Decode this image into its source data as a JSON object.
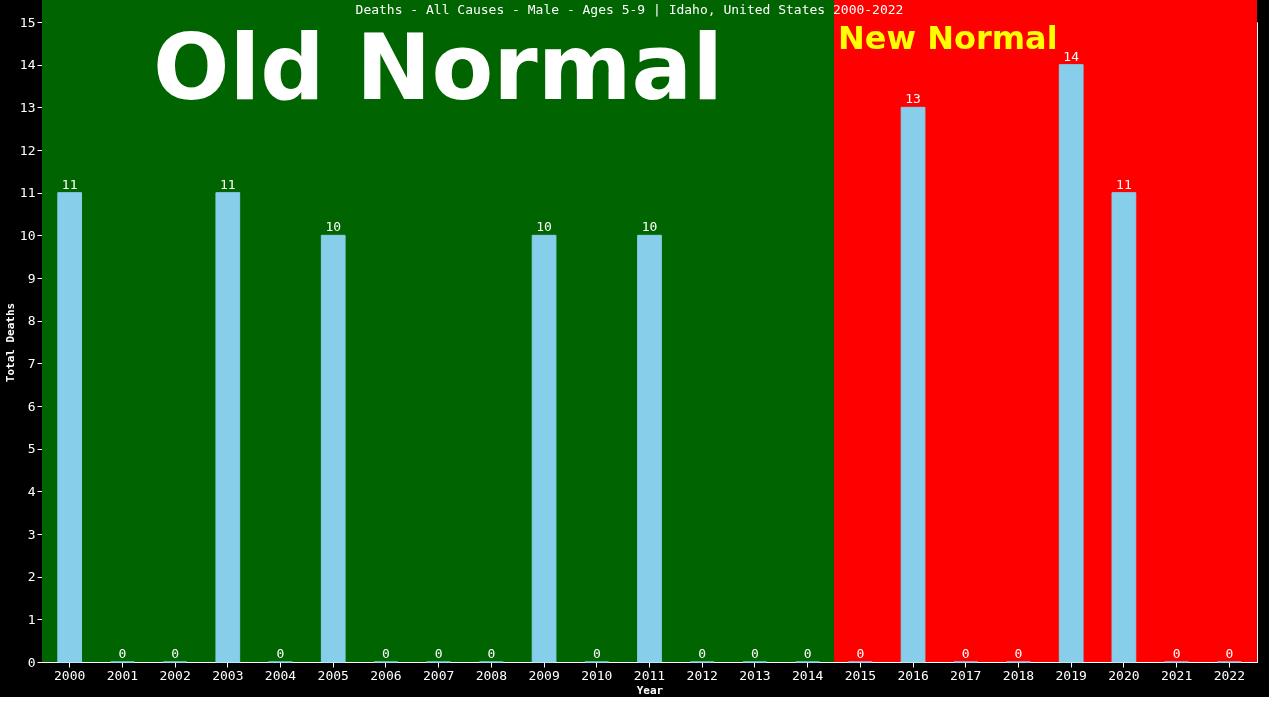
{
  "chart_data": {
    "type": "bar",
    "title": "Deaths - All Causes - Male - Ages 5-9 | Idaho, United States 2000-2022",
    "xlabel": "Year",
    "ylabel": "Total Deaths",
    "categories": [
      "2000",
      "2001",
      "2002",
      "2003",
      "2004",
      "2005",
      "2006",
      "2007",
      "2008",
      "2009",
      "2010",
      "2011",
      "2012",
      "2013",
      "2014",
      "2015",
      "2016",
      "2017",
      "2018",
      "2019",
      "2020",
      "2021",
      "2022"
    ],
    "values": [
      11,
      0,
      0,
      11,
      0,
      10,
      0,
      0,
      0,
      10,
      0,
      10,
      0,
      0,
      0,
      0,
      13,
      0,
      0,
      14,
      11,
      0,
      0
    ],
    "color": "#87ceeb",
    "ylim": [
      0,
      15
    ],
    "yticks": [
      0,
      1,
      2,
      3,
      4,
      5,
      6,
      7,
      8,
      9,
      10,
      11,
      12,
      13,
      14,
      15
    ],
    "grid": false,
    "data_labels": true,
    "bands": [
      {
        "axis": "x",
        "from": "2000",
        "to": "2014",
        "label": "Old Normal",
        "color": "#006400"
      },
      {
        "axis": "x",
        "from": "2015",
        "to": "2022",
        "label": "New Normal",
        "color": "#ff0000"
      }
    ]
  }
}
